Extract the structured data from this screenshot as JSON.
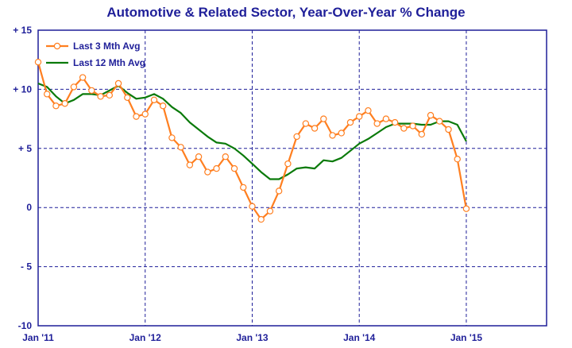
{
  "chart_data": {
    "type": "line",
    "title": "Automotive & Related Sector, Year-Over-Year % Change",
    "xlabel": "",
    "ylabel": "",
    "ylim": [
      -10,
      15
    ],
    "yticks": [
      "+ 15",
      "+ 10",
      "+ 5",
      "0",
      "- 5",
      "-10"
    ],
    "ytick_values": [
      15,
      10,
      5,
      0,
      -5,
      -10
    ],
    "xlim": [
      0,
      57
    ],
    "xticks": [
      "Jan '11",
      "Jan '12",
      "Jan '13",
      "Jan '14",
      "Jan '15"
    ],
    "xtick_values": [
      0,
      12,
      24,
      36,
      48
    ],
    "grid": true,
    "legend_placement": "top-left",
    "colors": {
      "axes": "#1f1f99",
      "grid": "#1f1f99",
      "series_3": "#ff7f20",
      "series_12": "#0a7a0a"
    },
    "series": [
      {
        "name": "Last 3 Mth Avg",
        "x": [
          0,
          1,
          2,
          3,
          4,
          5,
          6,
          7,
          8,
          9,
          10,
          11,
          12,
          13,
          14,
          15,
          16,
          17,
          18,
          19,
          20,
          21,
          22,
          23,
          24,
          25,
          26,
          27,
          28,
          29,
          30,
          31,
          32,
          33,
          34,
          35,
          36,
          37,
          38,
          39,
          40,
          41,
          42,
          43,
          44,
          45,
          46,
          47,
          48
        ],
        "values": [
          12.3,
          9.6,
          8.6,
          8.8,
          10.2,
          11.0,
          9.9,
          9.4,
          9.5,
          10.5,
          9.3,
          7.7,
          7.9,
          9.1,
          8.6,
          5.9,
          5.1,
          3.6,
          4.3,
          3.0,
          3.3,
          4.3,
          3.3,
          1.7,
          0.1,
          -1.0,
          -0.3,
          1.4,
          3.7,
          6.0,
          7.1,
          6.7,
          7.5,
          6.1,
          6.3,
          7.2,
          7.7,
          8.2,
          7.1,
          7.5,
          7.2,
          6.7,
          6.9,
          6.2,
          7.8,
          7.3,
          6.6,
          4.1,
          -0.1
        ]
      },
      {
        "name": "Last 12 Mth Avg",
        "x": [
          0,
          1,
          2,
          3,
          4,
          5,
          6,
          7,
          8,
          9,
          10,
          11,
          12,
          13,
          14,
          15,
          16,
          17,
          18,
          19,
          20,
          21,
          22,
          23,
          24,
          25,
          26,
          27,
          28,
          29,
          30,
          31,
          32,
          33,
          34,
          35,
          36,
          37,
          38,
          39,
          40,
          41,
          42,
          43,
          44,
          45,
          46,
          47,
          48
        ],
        "values": [
          10.5,
          10.2,
          9.4,
          8.8,
          9.1,
          9.6,
          9.6,
          9.5,
          9.9,
          10.3,
          9.7,
          9.2,
          9.3,
          9.6,
          9.2,
          8.5,
          8.0,
          7.2,
          6.6,
          6.0,
          5.5,
          5.4,
          5.0,
          4.4,
          3.7,
          3.0,
          2.4,
          2.4,
          2.8,
          3.3,
          3.4,
          3.3,
          4.0,
          3.9,
          4.2,
          4.8,
          5.4,
          5.8,
          6.3,
          6.8,
          7.1,
          7.1,
          7.1,
          7.0,
          7.0,
          7.3,
          7.3,
          7.0,
          5.6
        ]
      }
    ]
  }
}
